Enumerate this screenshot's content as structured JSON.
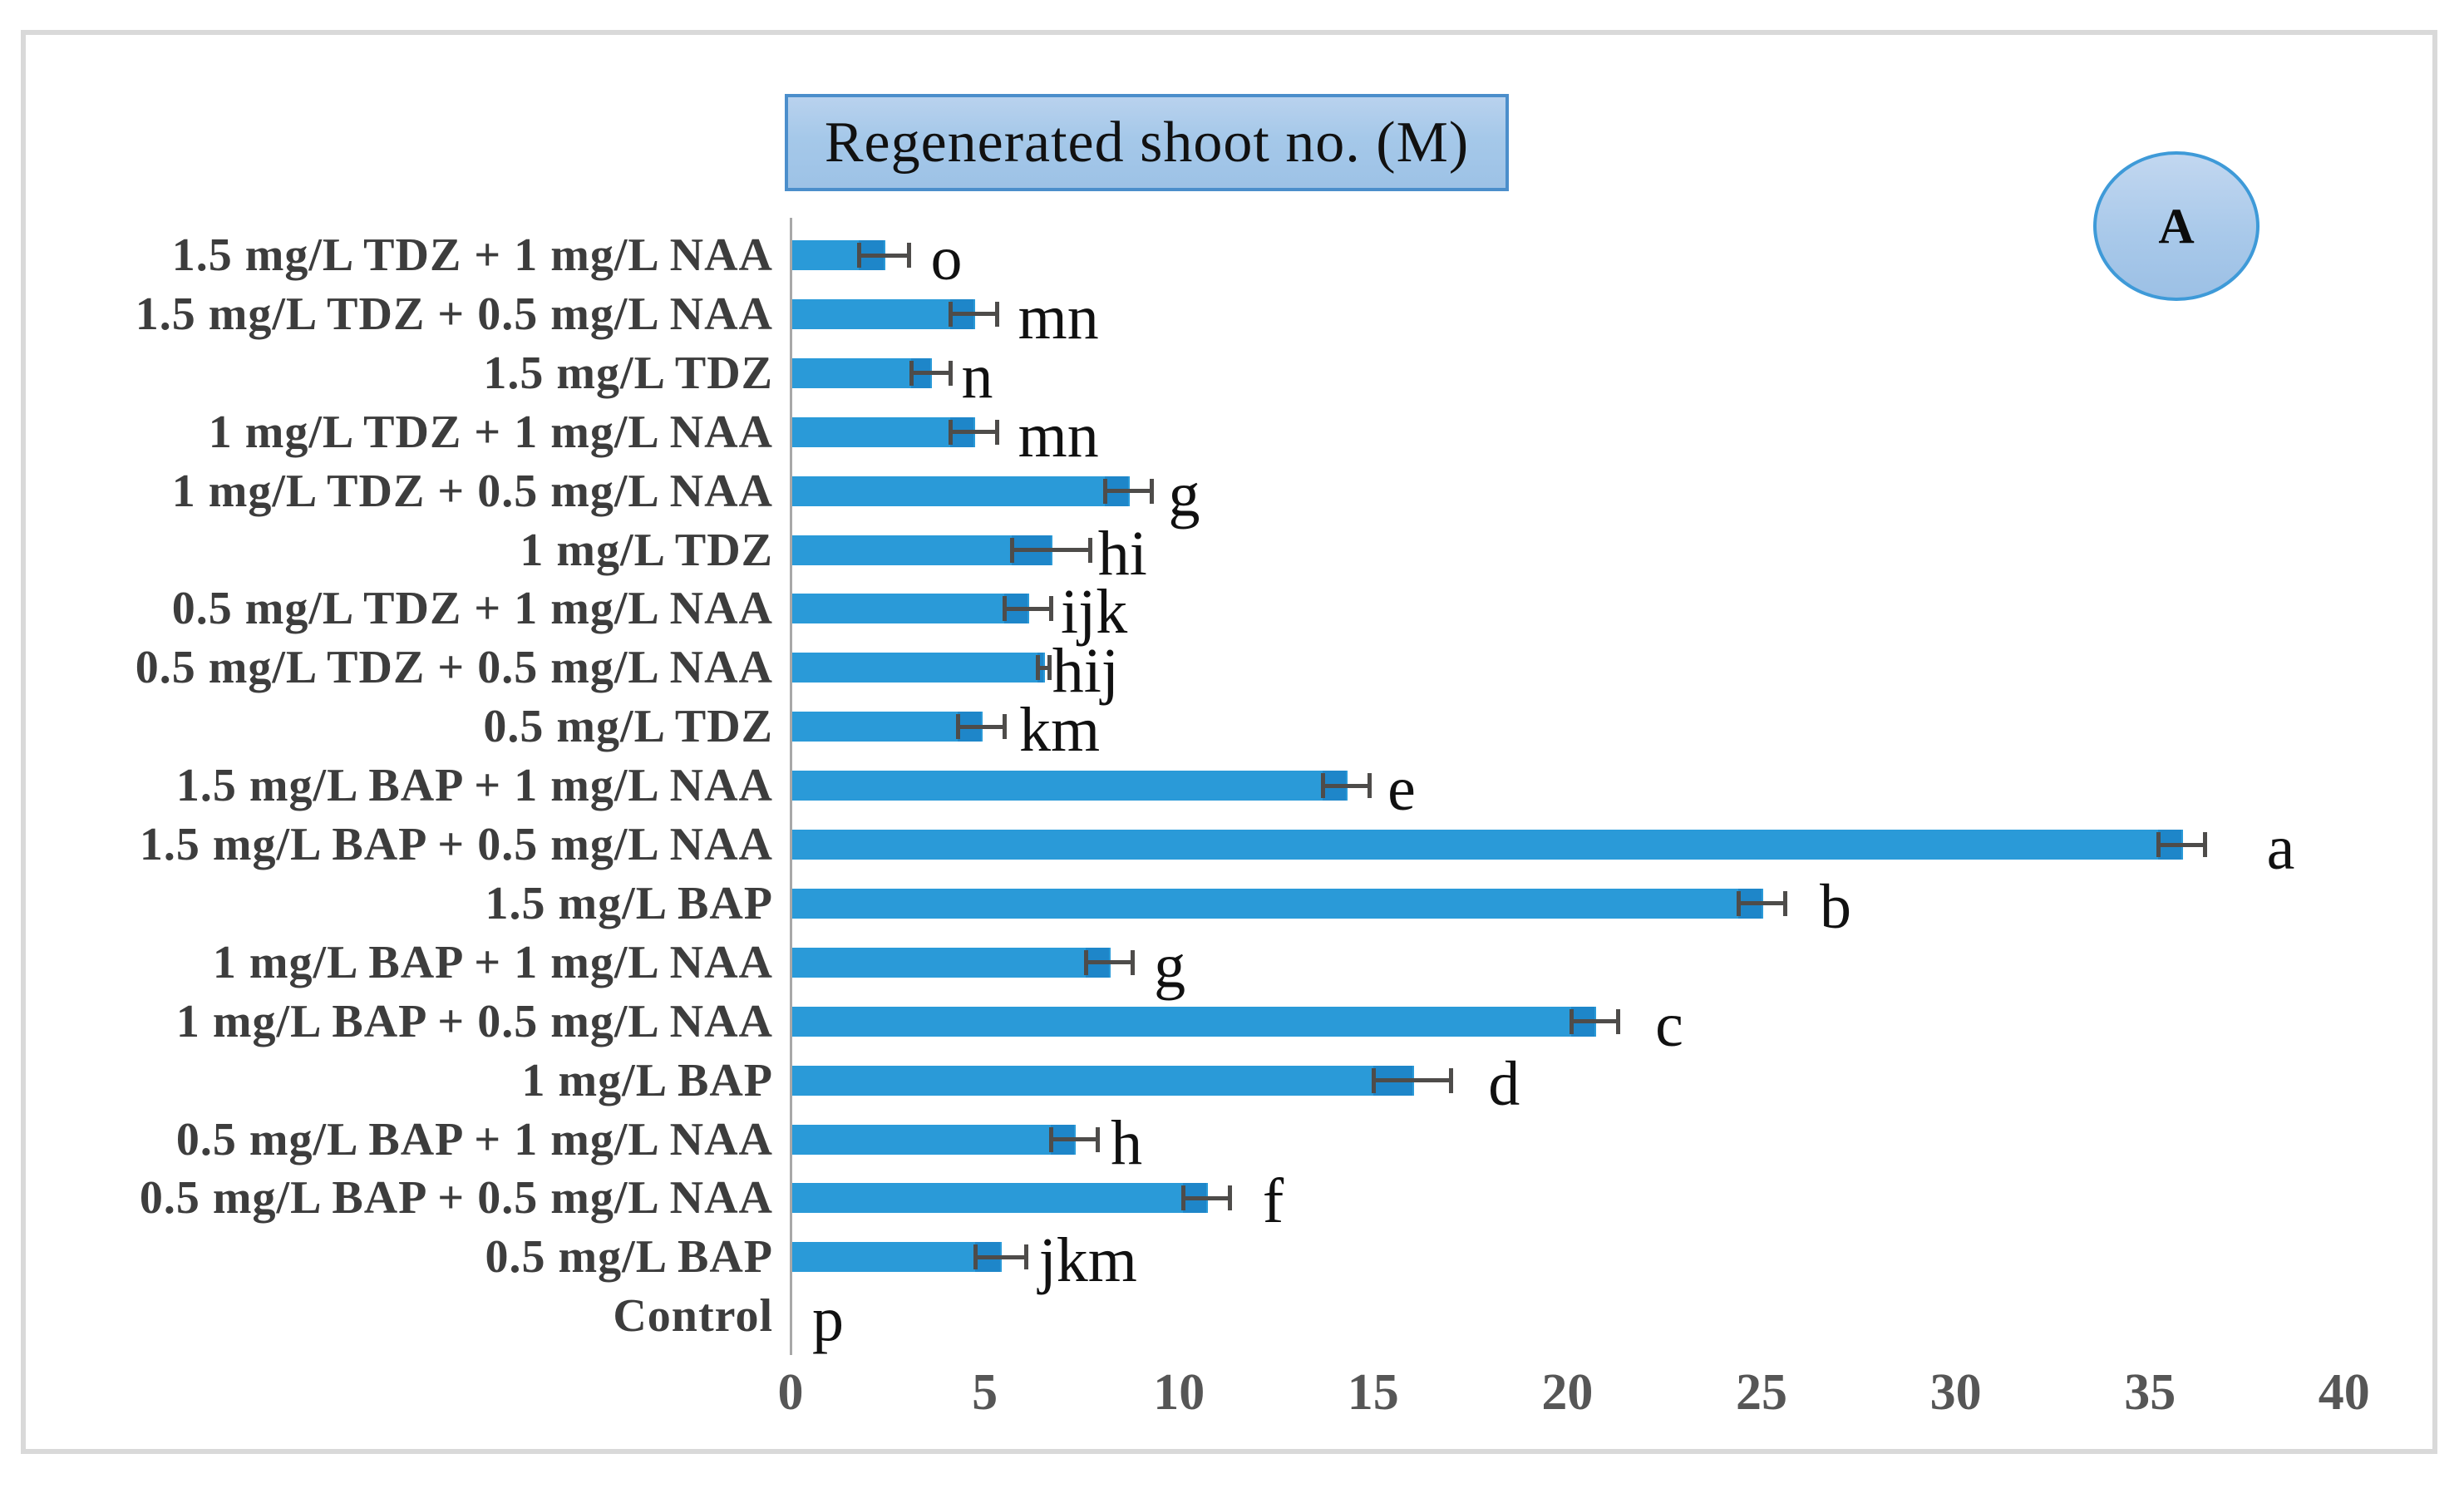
{
  "figure": {
    "title": "Regenerated shoot no. (M)",
    "panel_label": "A"
  },
  "chart_data": {
    "type": "bar",
    "orientation": "horizontal",
    "title": "Regenerated shoot no. (M)",
    "xlabel": "",
    "ylabel": "",
    "xlim": [
      0,
      40
    ],
    "x_ticks": [
      0,
      5,
      10,
      15,
      20,
      25,
      30,
      35,
      40
    ],
    "grid": false,
    "legend_position": "none",
    "rows": [
      {
        "category": "1.5 mg/L TDZ + 1 mg/L NAA",
        "value": 2.4,
        "error": 0.65,
        "letter": "o",
        "letter_gap": 26
      },
      {
        "category": "1.5 mg/L TDZ + 0.5 mg/L NAA",
        "value": 4.7,
        "error": 0.6,
        "letter": "mn",
        "letter_gap": 26
      },
      {
        "category": "1.5 mg/L TDZ",
        "value": 3.6,
        "error": 0.5,
        "letter": "n",
        "letter_gap": 14
      },
      {
        "category": "1 mg/L TDZ + 1 mg/L NAA",
        "value": 4.7,
        "error": 0.6,
        "letter": "mn",
        "letter_gap": 26
      },
      {
        "category": "1 mg/L TDZ + 0.5 mg/L NAA",
        "value": 8.7,
        "error": 0.6,
        "letter": "g",
        "letter_gap": 20
      },
      {
        "category": "1 mg/L TDZ",
        "value": 6.7,
        "error": 1.0,
        "letter": "hi",
        "letter_gap": 10
      },
      {
        "category": "0.5 mg/L TDZ + 1 mg/L NAA",
        "value": 6.1,
        "error": 0.6,
        "letter": "ijk",
        "letter_gap": 12
      },
      {
        "category": "0.5 mg/L TDZ + 0.5 mg/L NAA",
        "value": 6.5,
        "error": 0.15,
        "letter": "hij",
        "letter_gap": 4
      },
      {
        "category": "0.5 mg/L TDZ",
        "value": 4.9,
        "error": 0.6,
        "letter": "km",
        "letter_gap": 18
      },
      {
        "category": "1.5 mg/L BAP + 1 mg/L NAA",
        "value": 14.3,
        "error": 0.6,
        "letter": "e",
        "letter_gap": 22
      },
      {
        "category": "1.5 mg/L BAP + 0.5 mg/L NAA",
        "value": 35.8,
        "error": 0.6,
        "letter": "a",
        "letter_gap": 75
      },
      {
        "category": "1.5 mg/L BAP",
        "value": 25.0,
        "error": 0.6,
        "letter": "b",
        "letter_gap": 42
      },
      {
        "category": "1 mg/L BAP + 1 mg/L NAA",
        "value": 8.2,
        "error": 0.6,
        "letter": "g",
        "letter_gap": 26
      },
      {
        "category": "1 mg/L BAP + 0.5 mg/L NAA",
        "value": 20.7,
        "error": 0.6,
        "letter": "c",
        "letter_gap": 45
      },
      {
        "category": "1 mg/L BAP",
        "value": 16.0,
        "error": 1.0,
        "letter": "d",
        "letter_gap": 45
      },
      {
        "category": "0.5 mg/L BAP + 1 mg/L NAA",
        "value": 7.3,
        "error": 0.6,
        "letter": "h",
        "letter_gap": 16
      },
      {
        "category": "0.5 mg/L BAP + 0.5 mg/L NAA",
        "value": 10.7,
        "error": 0.6,
        "letter": "f",
        "letter_gap": 40
      },
      {
        "category": "0.5 mg/L BAP",
        "value": 5.4,
        "error": 0.65,
        "letter": "jkm",
        "letter_gap": 16
      },
      {
        "category": "Control",
        "value": 0,
        "error": 0,
        "letter": "p",
        "letter_gap": 26
      }
    ],
    "colors": {
      "bar": "#2a9ad8",
      "bar_error_overlap": "#1e86c9",
      "error_bar": "#4e4c4a",
      "axis_line": "#a8a8a8",
      "tick_text": "#565656",
      "category_text": "#3d3d3d",
      "letter_text": "#111111",
      "title_box_fill": "#a5c8e9",
      "title_box_border": "#4b8ecb",
      "panel_ellipse_fill": "#a9c9ea",
      "panel_ellipse_border": "#3e9ad8",
      "frame_border": "#d9d9d9"
    }
  }
}
